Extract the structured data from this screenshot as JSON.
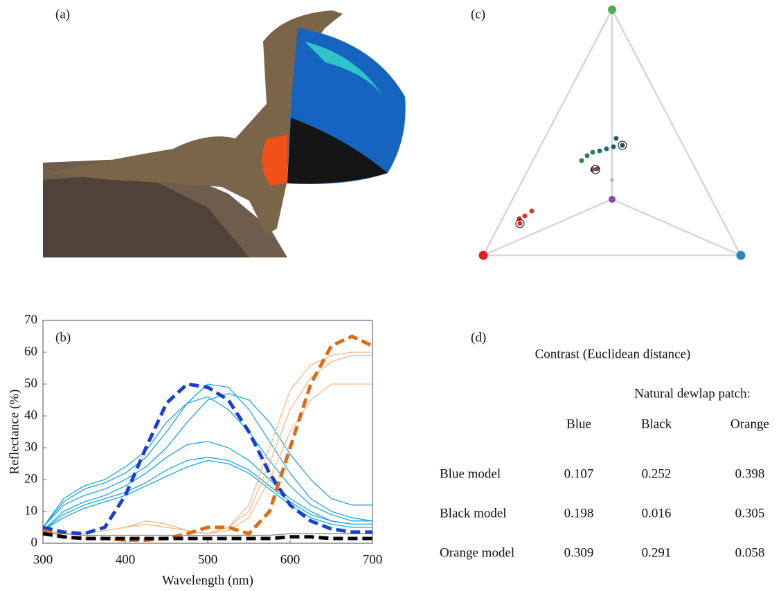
{
  "panels": {
    "a": "(a)",
    "b": "(b)",
    "c": "(c)",
    "d": "(d)"
  },
  "chart_data": {
    "type": "line",
    "x_label": "Wavelength (nm)",
    "y_label": "Reflectance (%)",
    "x": [
      300,
      325,
      350,
      375,
      400,
      425,
      450,
      475,
      500,
      525,
      550,
      575,
      600,
      625,
      650,
      675,
      700
    ],
    "xlim": [
      300,
      700
    ],
    "xticks": [
      300,
      400,
      500,
      600,
      700
    ],
    "ylim": [
      0,
      70
    ],
    "yticks": [
      0,
      10,
      20,
      30,
      40,
      50,
      60,
      70
    ],
    "grid": false,
    "series": [
      {
        "color": "#1aa6e0",
        "dashed": false,
        "values": [
          5,
          13,
          17,
          19,
          22,
          27,
          35,
          44,
          50,
          49,
          42,
          32,
          22,
          14,
          10,
          8,
          7
        ]
      },
      {
        "color": "#1aa6e0",
        "dashed": false,
        "values": [
          4,
          10,
          13,
          15,
          18,
          22,
          27,
          31,
          32,
          30,
          26,
          20,
          14,
          10,
          7,
          6,
          6
        ]
      },
      {
        "color": "#1aa6e0",
        "dashed": false,
        "values": [
          4,
          9,
          12,
          14,
          16,
          19,
          23,
          26,
          27,
          26,
          23,
          18,
          13,
          9,
          7,
          6,
          6
        ]
      },
      {
        "color": "#1aa6e0",
        "dashed": false,
        "values": [
          5,
          12,
          15,
          17,
          20,
          24,
          30,
          38,
          45,
          47,
          45,
          38,
          28,
          20,
          14,
          12,
          12
        ]
      },
      {
        "color": "#1aa6e0",
        "dashed": false,
        "values": [
          4,
          8,
          11,
          13,
          15,
          18,
          21,
          24,
          26,
          25,
          22,
          17,
          12,
          8,
          6,
          5,
          5
        ]
      },
      {
        "color": "#1aa6e0",
        "dashed": false,
        "values": [
          5,
          14,
          18,
          20,
          24,
          29,
          38,
          44,
          46,
          42,
          35,
          26,
          18,
          12,
          9,
          7,
          7
        ]
      },
      {
        "color": "#f5b889",
        "dashed": false,
        "values": [
          4,
          3,
          3,
          4,
          5,
          6,
          5,
          4,
          3,
          5,
          10,
          25,
          42,
          52,
          57,
          59,
          59
        ]
      },
      {
        "color": "#f5b889",
        "dashed": false,
        "values": [
          4,
          3,
          3,
          4,
          5,
          6,
          5,
          4,
          3,
          4,
          8,
          20,
          35,
          45,
          50,
          50,
          50
        ]
      },
      {
        "color": "#f5b889",
        "dashed": false,
        "values": [
          4,
          3,
          3,
          4,
          5,
          7,
          6,
          4,
          3,
          5,
          12,
          30,
          48,
          56,
          59,
          60,
          60
        ]
      },
      {
        "color": "#888888",
        "dashed": false,
        "values": [
          3,
          3,
          2.5,
          2.5,
          2.5,
          2.5,
          2.5,
          2.5,
          2.5,
          2.5,
          2.5,
          2.5,
          3,
          3,
          3,
          3,
          3
        ]
      },
      {
        "color": "#1a3fd1",
        "dashed": true,
        "values": [
          5,
          3.5,
          3,
          5,
          15,
          30,
          44,
          50,
          49,
          45,
          35,
          22,
          12,
          7,
          4.5,
          3.5,
          3.5
        ]
      },
      {
        "color": "#e06a10",
        "dashed": true,
        "values": [
          4,
          2,
          1.5,
          1.5,
          1,
          1,
          1.5,
          3,
          5,
          5,
          3,
          10,
          30,
          50,
          62,
          65,
          62
        ]
      },
      {
        "color": "#000000",
        "dashed": true,
        "values": [
          3,
          2,
          1.5,
          1.5,
          1.5,
          1.5,
          1.5,
          1.5,
          1.5,
          1.5,
          1.5,
          1.5,
          2,
          2,
          1.5,
          1.5,
          1.5
        ]
      }
    ]
  },
  "table": {
    "title": "Contrast (Euclidean distance)",
    "subheader": "Natural dewlap patch:",
    "columns": [
      "Blue",
      "Black",
      "Orange"
    ],
    "rows": [
      {
        "label": "Blue model",
        "values": [
          0.107,
          0.252,
          0.398
        ]
      },
      {
        "label": "Black model",
        "values": [
          0.198,
          0.016,
          0.305
        ]
      },
      {
        "label": "Orange model",
        "values": [
          0.309,
          0.291,
          0.058
        ]
      }
    ]
  }
}
